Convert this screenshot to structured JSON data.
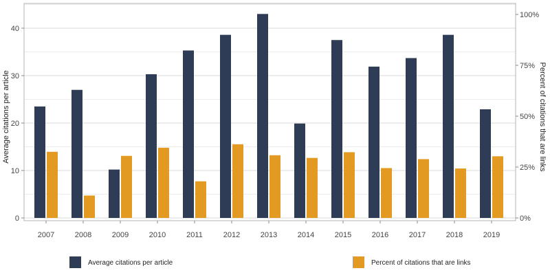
{
  "chart_data": {
    "type": "bar",
    "categories": [
      "2007",
      "2008",
      "2009",
      "2010",
      "2011",
      "2012",
      "2013",
      "2014",
      "2015",
      "2016",
      "2017",
      "2018",
      "2019"
    ],
    "series": [
      {
        "name": "Average citations per article",
        "axis": "left",
        "color": "#2e3d55",
        "values": [
          23.5,
          27.0,
          10.2,
          30.3,
          35.3,
          38.6,
          43.0,
          19.9,
          37.5,
          31.9,
          33.7,
          38.6,
          22.9
        ]
      },
      {
        "name": "Percent of citations that are links",
        "axis": "right",
        "color": "#e39a22",
        "values": [
          32.5,
          11.0,
          30.5,
          34.5,
          18.0,
          36.2,
          30.8,
          29.5,
          32.3,
          24.5,
          28.9,
          24.3,
          30.3
        ]
      }
    ],
    "ylabel": "Average citations per article",
    "ylabel_right": "Percent of citations that are links",
    "ylim": [
      0,
      43
    ],
    "ylim_right": [
      0,
      100
    ],
    "yticks": [
      0,
      10,
      20,
      30,
      40
    ],
    "yticks_right": [
      0,
      25,
      50,
      75,
      100
    ],
    "yticks_right_labels": [
      "0%",
      "25%",
      "50%",
      "75%",
      "100%"
    ],
    "grid": true,
    "legend_position": "bottom"
  }
}
